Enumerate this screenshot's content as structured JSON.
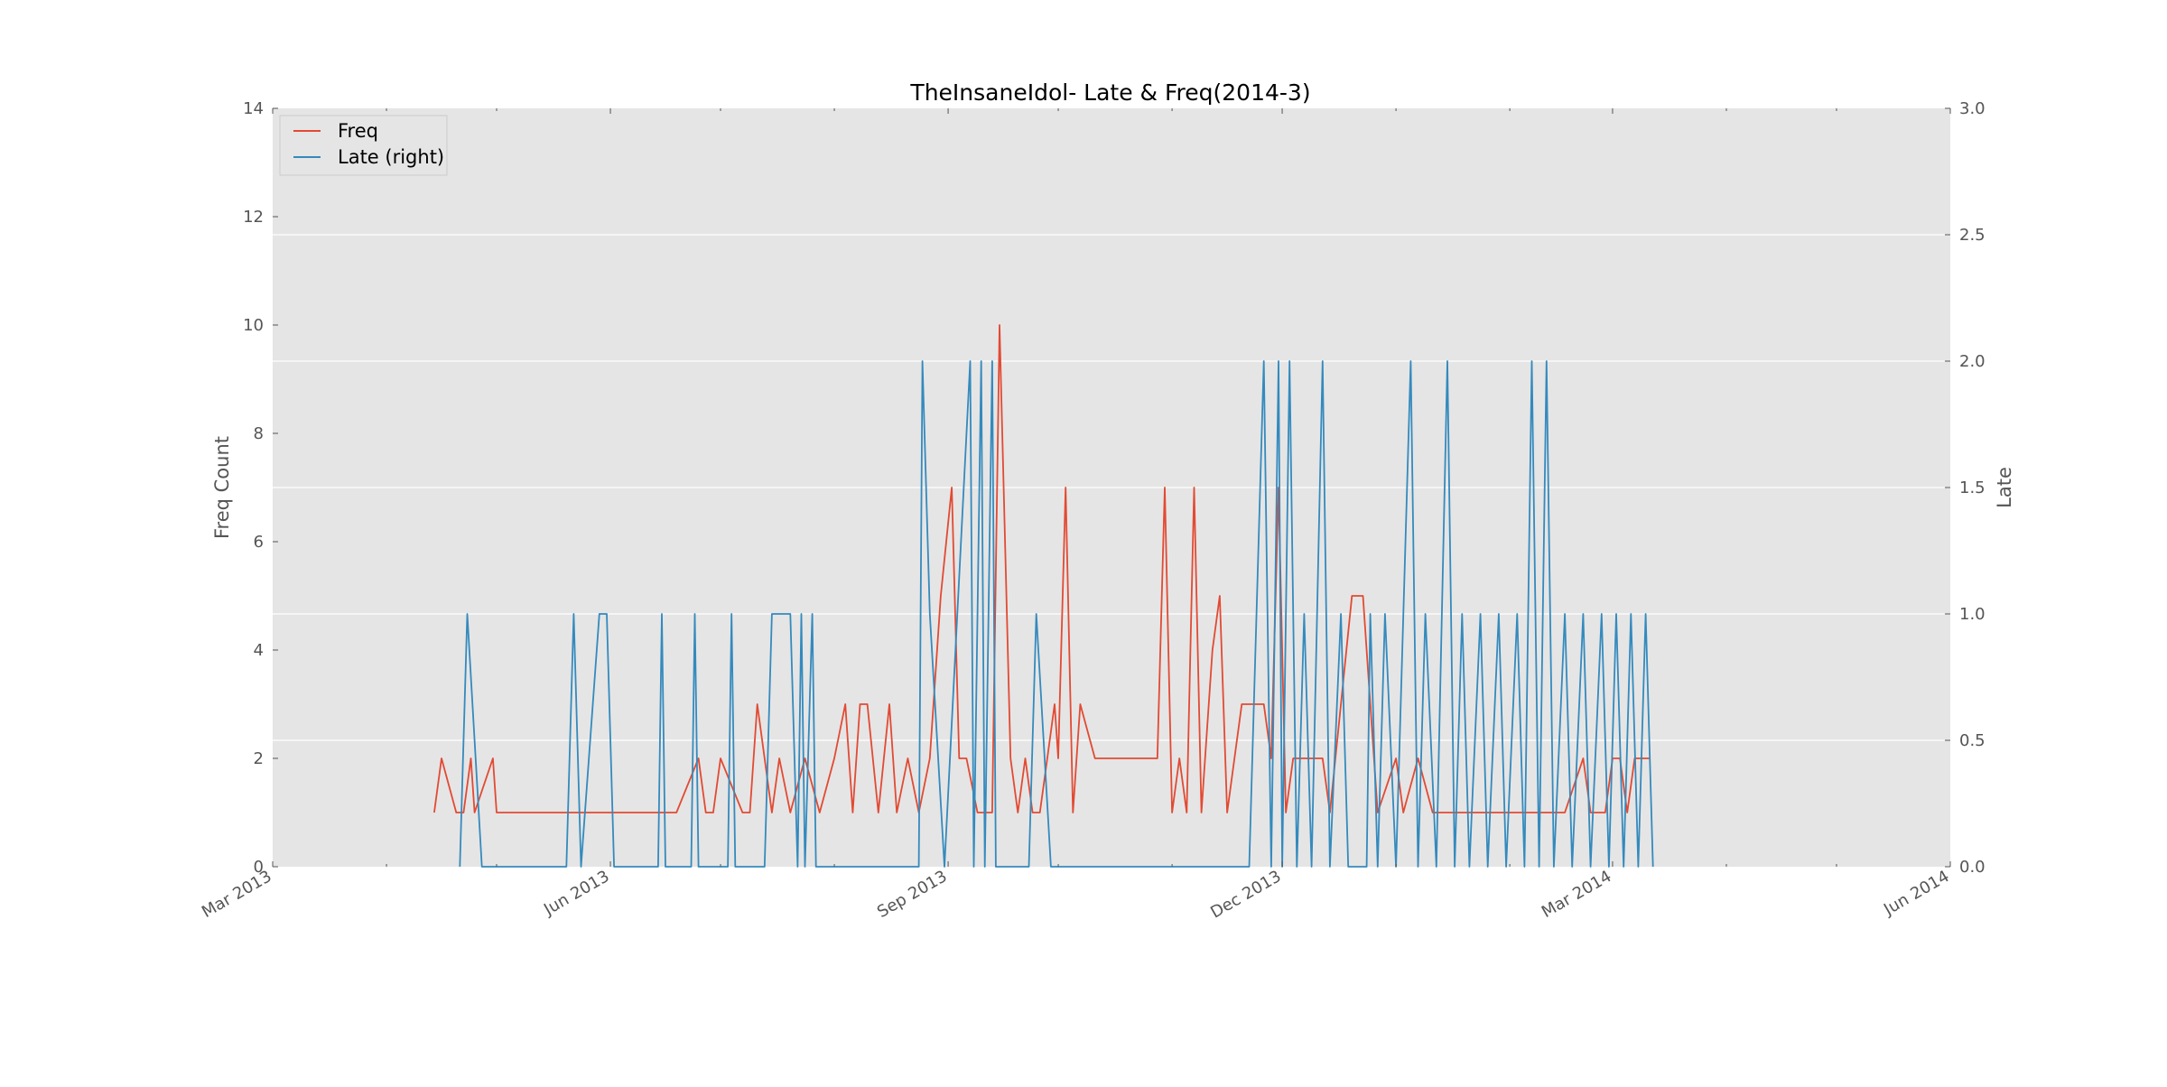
{
  "chart_data": {
    "type": "line",
    "title": "TheInsaneIdol- Late & Freq(2014-3)",
    "xlabel": "",
    "ylabel": "Freq Count",
    "ylabel_right": "Late",
    "x_range": [
      "2013-03-01",
      "2014-06-01"
    ],
    "x_tick_labels": [
      {
        "date": "2013-03-01",
        "label": "Mar 2013"
      },
      {
        "date": "2013-06-01",
        "label": "Jun 2013"
      },
      {
        "date": "2013-09-01",
        "label": "Sep 2013"
      },
      {
        "date": "2013-12-01",
        "label": "Dec 2013"
      },
      {
        "date": "2014-03-01",
        "label": "Mar 2014"
      },
      {
        "date": "2014-06-01",
        "label": "Jun 2014"
      }
    ],
    "ylim": [
      0,
      14
    ],
    "y_ticks": [
      "0",
      "2",
      "4",
      "6",
      "8",
      "10",
      "12",
      "14"
    ],
    "ylim_right": [
      0,
      3.0
    ],
    "y_ticks_right": [
      "0.0",
      "0.5",
      "1.0",
      "1.5",
      "2.0",
      "2.5",
      "3.0"
    ],
    "grid": true,
    "legend_position": "top-left",
    "colors": {
      "plot_background": "#e5e5e5",
      "grid": "#ffffff",
      "text": "#555555"
    },
    "series": [
      {
        "name": "Freq",
        "axis": "left",
        "color": "#e24a33",
        "points": [
          [
            "2013-04-14",
            1
          ],
          [
            "2013-04-16",
            2
          ],
          [
            "2013-04-20",
            1
          ],
          [
            "2013-04-22",
            1
          ],
          [
            "2013-04-24",
            2
          ],
          [
            "2013-04-25",
            1
          ],
          [
            "2013-04-30",
            2
          ],
          [
            "2013-05-01",
            1
          ],
          [
            "2013-05-08",
            1
          ],
          [
            "2013-05-16",
            1
          ],
          [
            "2013-05-24",
            1
          ],
          [
            "2013-05-31",
            1
          ],
          [
            "2013-06-05",
            1
          ],
          [
            "2013-06-13",
            1
          ],
          [
            "2013-06-19",
            1
          ],
          [
            "2013-06-25",
            2
          ],
          [
            "2013-06-27",
            1
          ],
          [
            "2013-06-29",
            1
          ],
          [
            "2013-07-01",
            2
          ],
          [
            "2013-07-07",
            1
          ],
          [
            "2013-07-09",
            1
          ],
          [
            "2013-07-11",
            3
          ],
          [
            "2013-07-15",
            1
          ],
          [
            "2013-07-17",
            2
          ],
          [
            "2013-07-20",
            1
          ],
          [
            "2013-07-24",
            2
          ],
          [
            "2013-07-28",
            1
          ],
          [
            "2013-08-01",
            2
          ],
          [
            "2013-08-04",
            3
          ],
          [
            "2013-08-06",
            1
          ],
          [
            "2013-08-08",
            3
          ],
          [
            "2013-08-10",
            3
          ],
          [
            "2013-08-13",
            1
          ],
          [
            "2013-08-16",
            3
          ],
          [
            "2013-08-18",
            1
          ],
          [
            "2013-08-21",
            2
          ],
          [
            "2013-08-24",
            1
          ],
          [
            "2013-08-27",
            2
          ],
          [
            "2013-08-30",
            5
          ],
          [
            "2013-09-02",
            7
          ],
          [
            "2013-09-04",
            2
          ],
          [
            "2013-09-06",
            2
          ],
          [
            "2013-09-09",
            1
          ],
          [
            "2013-09-13",
            1
          ],
          [
            "2013-09-15",
            10
          ],
          [
            "2013-09-18",
            2
          ],
          [
            "2013-09-20",
            1
          ],
          [
            "2013-09-22",
            2
          ],
          [
            "2013-09-24",
            1
          ],
          [
            "2013-09-26",
            1
          ],
          [
            "2013-09-28",
            2
          ],
          [
            "2013-09-30",
            3
          ],
          [
            "2013-10-01",
            2
          ],
          [
            "2013-10-03",
            7
          ],
          [
            "2013-10-05",
            1
          ],
          [
            "2013-10-07",
            3
          ],
          [
            "2013-10-11",
            2
          ],
          [
            "2013-10-14",
            2
          ],
          [
            "2013-10-25",
            2
          ],
          [
            "2013-10-28",
            2
          ],
          [
            "2013-10-30",
            7
          ],
          [
            "2013-11-01",
            1
          ],
          [
            "2013-11-03",
            2
          ],
          [
            "2013-11-05",
            1
          ],
          [
            "2013-11-07",
            7
          ],
          [
            "2013-11-09",
            1
          ],
          [
            "2013-11-12",
            4
          ],
          [
            "2013-11-14",
            5
          ],
          [
            "2013-11-16",
            1
          ],
          [
            "2013-11-18",
            2
          ],
          [
            "2013-11-20",
            3
          ],
          [
            "2013-11-22",
            3
          ],
          [
            "2013-11-24",
            3
          ],
          [
            "2013-11-26",
            3
          ],
          [
            "2013-11-28",
            2
          ],
          [
            "2013-11-30",
            7
          ],
          [
            "2013-12-02",
            1
          ],
          [
            "2013-12-04",
            2
          ],
          [
            "2013-12-07",
            2
          ],
          [
            "2013-12-12",
            2
          ],
          [
            "2013-12-14",
            1
          ],
          [
            "2013-12-20",
            5
          ],
          [
            "2013-12-23",
            5
          ],
          [
            "2013-12-27",
            1
          ],
          [
            "2014-01-01",
            2
          ],
          [
            "2014-01-03",
            1
          ],
          [
            "2014-01-07",
            2
          ],
          [
            "2014-01-11",
            1
          ],
          [
            "2014-01-20",
            1
          ],
          [
            "2014-01-29",
            1
          ],
          [
            "2014-02-06",
            1
          ],
          [
            "2014-02-16",
            1
          ],
          [
            "2014-02-21",
            2
          ],
          [
            "2014-02-23",
            1
          ],
          [
            "2014-02-27",
            1
          ],
          [
            "2014-03-01",
            2
          ],
          [
            "2014-03-03",
            2
          ],
          [
            "2014-03-05",
            1
          ],
          [
            "2014-03-07",
            2
          ],
          [
            "2014-03-09",
            2
          ],
          [
            "2014-03-11",
            2
          ]
        ]
      },
      {
        "name": "Late (right)",
        "axis": "right",
        "color": "#348abd",
        "points": [
          [
            "2013-04-21",
            0.0
          ],
          [
            "2013-04-23",
            1.0
          ],
          [
            "2013-04-27",
            0.0
          ],
          [
            "2013-05-20",
            0.0
          ],
          [
            "2013-05-22",
            1.0
          ],
          [
            "2013-05-24",
            0.0
          ],
          [
            "2013-05-29",
            1.0
          ],
          [
            "2013-05-31",
            1.0
          ],
          [
            "2013-06-02",
            0.0
          ],
          [
            "2013-06-14",
            0.0
          ],
          [
            "2013-06-15",
            1.0
          ],
          [
            "2013-06-16",
            0.0
          ],
          [
            "2013-06-23",
            0.0
          ],
          [
            "2013-06-24",
            1.0
          ],
          [
            "2013-06-25",
            0.0
          ],
          [
            "2013-07-03",
            0.0
          ],
          [
            "2013-07-04",
            1.0
          ],
          [
            "2013-07-05",
            0.0
          ],
          [
            "2013-07-13",
            0.0
          ],
          [
            "2013-07-15",
            1.0
          ],
          [
            "2013-07-20",
            1.0
          ],
          [
            "2013-07-22",
            0.0
          ],
          [
            "2013-07-23",
            1.0
          ],
          [
            "2013-07-24",
            0.0
          ],
          [
            "2013-07-26",
            1.0
          ],
          [
            "2013-07-27",
            0.0
          ],
          [
            "2013-08-24",
            0.0
          ],
          [
            "2013-08-25",
            2.0
          ],
          [
            "2013-08-27",
            1.0
          ],
          [
            "2013-08-31",
            0.0
          ],
          [
            "2013-09-07",
            2.0
          ],
          [
            "2013-09-08",
            0.0
          ],
          [
            "2013-09-10",
            2.0
          ],
          [
            "2013-09-11",
            0.0
          ],
          [
            "2013-09-13",
            2.0
          ],
          [
            "2013-09-14",
            0.0
          ],
          [
            "2013-09-23",
            0.0
          ],
          [
            "2013-09-25",
            1.0
          ],
          [
            "2013-09-29",
            0.0
          ],
          [
            "2013-11-22",
            0.0
          ],
          [
            "2013-11-26",
            2.0
          ],
          [
            "2013-11-28",
            0.0
          ],
          [
            "2013-11-30",
            2.0
          ],
          [
            "2013-12-01",
            0.0
          ],
          [
            "2013-12-03",
            2.0
          ],
          [
            "2013-12-05",
            0.0
          ],
          [
            "2013-12-07",
            1.0
          ],
          [
            "2013-12-09",
            0.0
          ],
          [
            "2013-12-12",
            2.0
          ],
          [
            "2013-12-14",
            0.0
          ],
          [
            "2013-12-17",
            1.0
          ],
          [
            "2013-12-19",
            0.0
          ],
          [
            "2013-12-24",
            0.0
          ],
          [
            "2013-12-25",
            1.0
          ],
          [
            "2013-12-27",
            0.0
          ],
          [
            "2013-12-29",
            1.0
          ],
          [
            "2014-01-01",
            0.0
          ],
          [
            "2014-01-05",
            2.0
          ],
          [
            "2014-01-07",
            0.0
          ],
          [
            "2014-01-09",
            1.0
          ],
          [
            "2014-01-12",
            0.0
          ],
          [
            "2014-01-15",
            2.0
          ],
          [
            "2014-01-17",
            0.0
          ],
          [
            "2014-01-19",
            1.0
          ],
          [
            "2014-01-21",
            0.0
          ],
          [
            "2014-01-24",
            1.0
          ],
          [
            "2014-01-26",
            0.0
          ],
          [
            "2014-01-29",
            1.0
          ],
          [
            "2014-01-31",
            0.0
          ],
          [
            "2014-02-03",
            1.0
          ],
          [
            "2014-02-05",
            0.0
          ],
          [
            "2014-02-07",
            2.0
          ],
          [
            "2014-02-09",
            0.0
          ],
          [
            "2014-02-11",
            2.0
          ],
          [
            "2014-02-13",
            0.0
          ],
          [
            "2014-02-16",
            1.0
          ],
          [
            "2014-02-18",
            0.0
          ],
          [
            "2014-02-21",
            1.0
          ],
          [
            "2014-02-23",
            0.0
          ],
          [
            "2014-02-26",
            1.0
          ],
          [
            "2014-02-28",
            0.0
          ],
          [
            "2014-03-02",
            1.0
          ],
          [
            "2014-03-04",
            0.0
          ],
          [
            "2014-03-06",
            1.0
          ],
          [
            "2014-03-08",
            0.0
          ],
          [
            "2014-03-10",
            1.0
          ],
          [
            "2014-03-12",
            0.0
          ]
        ]
      }
    ]
  }
}
